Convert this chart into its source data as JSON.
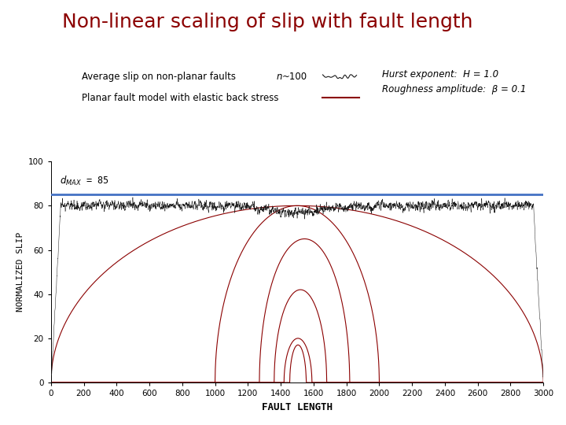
{
  "title": "Non-linear scaling of slip with fault length",
  "title_color": "#8B0000",
  "title_fontsize": 18,
  "xlabel": "FAULT LENGTH",
  "ylabel": "NORMALIZED SLIP",
  "xlim": [
    0,
    3000
  ],
  "ylim": [
    0,
    100
  ],
  "xticks": [
    0,
    200,
    400,
    600,
    800,
    1000,
    1200,
    1400,
    1600,
    1800,
    2000,
    2200,
    2400,
    2600,
    2800,
    3000
  ],
  "yticks": [
    0,
    20,
    40,
    60,
    80,
    100
  ],
  "hline_color": "#4472C4",
  "hline_y": 85,
  "noisy_color": "#1a1a1a",
  "planar_color": "#8B0000",
  "legend_label1": "Average slip on non-planar faults ",
  "legend_label1b": "n",
  "legend_label1c": "~100",
  "legend_label2": "Planar fault model with elastic back stress",
  "hurst_text": "Hurst exponent:  H = 1.0",
  "roughness_text": "Roughness amplitude:  β = 0.1",
  "bg_color": "#ffffff",
  "d_max_text": "d",
  "d_max_sub": "MAX",
  "d_max_eq": " = 85"
}
